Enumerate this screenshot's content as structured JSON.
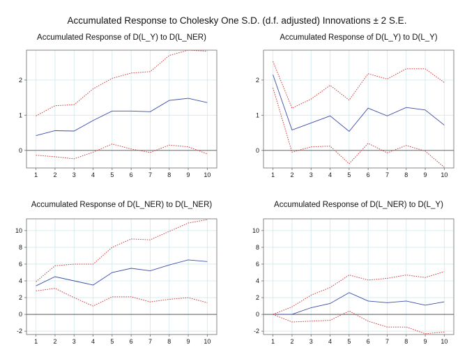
{
  "main_title": "Accumulated Response to Cholesky One S.D. (d.f. adjusted) Innovations ± 2 S.E.",
  "colors": {
    "response": "#3b4aa8",
    "bands": "#d23a3a",
    "grid": "#cfe8ec",
    "zero": "#555555",
    "frame": "#6a6a6a"
  },
  "chart_data": [
    {
      "type": "line",
      "title": "Accumulated Response of D(L_Y) to D(L_NER)",
      "x": [
        1,
        2,
        3,
        4,
        5,
        6,
        7,
        8,
        9,
        10
      ],
      "xlim": [
        0.5,
        10.5
      ],
      "ylim": [
        -0.5,
        2.85
      ],
      "yticks": [
        0,
        1,
        2
      ],
      "series": [
        {
          "role": "response",
          "values": [
            0.42,
            0.56,
            0.55,
            0.85,
            1.12,
            1.12,
            1.1,
            1.42,
            1.48,
            1.36
          ]
        },
        {
          "role": "upper",
          "values": [
            0.98,
            1.27,
            1.3,
            1.75,
            2.05,
            2.2,
            2.24,
            2.7,
            2.85,
            2.82
          ]
        },
        {
          "role": "lower",
          "values": [
            -0.14,
            -0.18,
            -0.24,
            -0.05,
            0.18,
            0.04,
            -0.06,
            0.15,
            0.1,
            -0.1
          ]
        }
      ]
    },
    {
      "type": "line",
      "title": "Accumulated Response of D(L_Y) to D(L_Y)",
      "x": [
        1,
        2,
        3,
        4,
        5,
        6,
        7,
        8,
        9,
        10
      ],
      "xlim": [
        0.5,
        10.5
      ],
      "ylim": [
        -0.5,
        2.85
      ],
      "yticks": [
        0,
        1,
        2
      ],
      "series": [
        {
          "role": "response",
          "values": [
            2.15,
            0.58,
            0.78,
            0.98,
            0.54,
            1.2,
            0.98,
            1.22,
            1.15,
            0.72
          ]
        },
        {
          "role": "upper",
          "values": [
            2.53,
            1.2,
            1.46,
            1.85,
            1.43,
            2.18,
            2.03,
            2.32,
            2.32,
            1.93
          ]
        },
        {
          "role": "lower",
          "values": [
            1.78,
            -0.05,
            0.1,
            0.12,
            -0.38,
            0.2,
            -0.07,
            0.14,
            -0.02,
            -0.48
          ]
        }
      ]
    },
    {
      "type": "line",
      "title": "Accumulated Response of D(L_NER) to D(L_NER)",
      "x": [
        1,
        2,
        3,
        4,
        5,
        6,
        7,
        8,
        9,
        10
      ],
      "xlim": [
        0.5,
        10.5
      ],
      "ylim": [
        -2.4,
        11.4
      ],
      "yticks": [
        -2,
        0,
        2,
        4,
        6,
        8,
        10
      ],
      "series": [
        {
          "role": "response",
          "values": [
            3.4,
            4.5,
            4.0,
            3.5,
            5.0,
            5.5,
            5.2,
            5.9,
            6.5,
            6.3
          ]
        },
        {
          "role": "upper",
          "values": [
            3.9,
            5.8,
            6.0,
            6.0,
            8.0,
            9.0,
            8.9,
            9.9,
            10.9,
            11.3
          ]
        },
        {
          "role": "lower",
          "values": [
            2.8,
            3.1,
            2.0,
            1.0,
            2.1,
            2.1,
            1.5,
            1.8,
            2.0,
            1.4
          ]
        }
      ]
    },
    {
      "type": "line",
      "title": "Accumulated Response of D(L_NER) to D(L_Y)",
      "x": [
        1,
        2,
        3,
        4,
        5,
        6,
        7,
        8,
        9,
        10
      ],
      "xlim": [
        0.5,
        10.5
      ],
      "ylim": [
        -2.4,
        11.4
      ],
      "yticks": [
        -2,
        0,
        2,
        4,
        6,
        8,
        10
      ],
      "series": [
        {
          "role": "response",
          "values": [
            0.0,
            0.0,
            0.8,
            1.3,
            2.6,
            1.6,
            1.4,
            1.6,
            1.1,
            1.5
          ]
        },
        {
          "role": "upper",
          "values": [
            0.0,
            0.9,
            2.3,
            3.2,
            4.7,
            4.1,
            4.3,
            4.7,
            4.4,
            5.1
          ]
        },
        {
          "role": "lower",
          "values": [
            0.0,
            -0.9,
            -0.8,
            -0.7,
            0.4,
            -0.8,
            -1.5,
            -1.5,
            -2.3,
            -2.1
          ]
        }
      ]
    }
  ]
}
